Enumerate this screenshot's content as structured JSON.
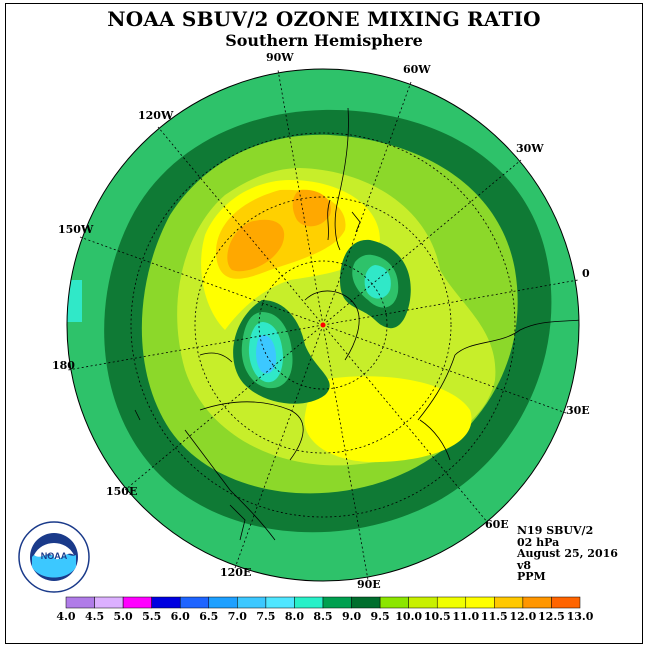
{
  "title": "NOAA SBUV/2 OZONE MIXING RATIO",
  "subtitle": "Southern Hemisphere",
  "longitude_labels": [
    "90W",
    "60W",
    "120W",
    "30W",
    "150W",
    "0",
    "180",
    "30E",
    "150E",
    "60E",
    "120E",
    "90E"
  ],
  "info": {
    "satellite": "N19 SBUV/2",
    "level": "02 hPa",
    "date": "August 25, 2016",
    "version": "v8",
    "units": "PPM"
  },
  "logo": {
    "text": "NOAA",
    "ring_text": "NATIONAL OCEANIC AND ATMOSPHERIC ADMINISTRATION",
    "bottom_text": "U.S. DEPARTMENT OF COMMERCE"
  },
  "colorbar": {
    "ticks": [
      "4.0",
      "4.5",
      "5.0",
      "5.5",
      "6.0",
      "6.5",
      "7.0",
      "7.5",
      "8.0",
      "8.5",
      "9.0",
      "9.5",
      "10.0",
      "10.5",
      "11.0",
      "11.5",
      "12.0",
      "12.5",
      "13.0"
    ],
    "colors": [
      "#b07ce8",
      "#dcb0ff",
      "#ff00ff",
      "#0000e0",
      "#1e64ff",
      "#1ea0ff",
      "#3cc8ff",
      "#50e6ff",
      "#28f0c8",
      "#00a050",
      "#006e2d",
      "#8ce600",
      "#c8f000",
      "#f0ff00",
      "#ffff00",
      "#ffc800",
      "#ff9600",
      "#ff6400",
      "#ff0000",
      "#966440"
    ]
  },
  "legend_colors": {
    "8.0-8.5": "#2ec26a",
    "8.5-9.0": "#0f7a35",
    "9.0-9.5": "#8cd82a",
    "9.5-10.0": "#c7ee2a",
    "10.0-10.5": "#ffff00",
    "10.5-11.0": "#ffd000",
    "11.0-11.5": "#ffa800",
    "7.5-8.0": "#30e8c8",
    "6.5-7.0": "#3cc8ff"
  }
}
